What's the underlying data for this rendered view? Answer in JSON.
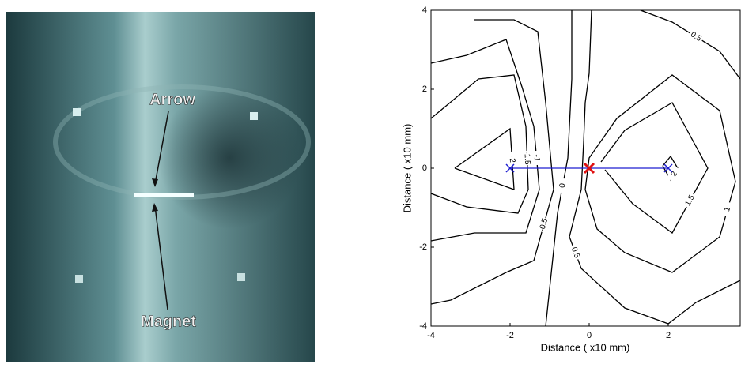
{
  "photo": {
    "labels": {
      "arrow": "Arrow",
      "magnet": "Magnet"
    }
  },
  "chart_data": {
    "type": "contour",
    "xlabel": "Distance ( x10 mm)",
    "ylabel": "Distance ( x10 mm)",
    "xlim": [
      -4,
      4
    ],
    "ylim": [
      -4,
      4
    ],
    "xticks": [
      -4,
      -2,
      0,
      2
    ],
    "yticks": [
      -4,
      -2,
      0,
      2,
      4
    ],
    "line_color": "#000000",
    "contours": [
      {
        "level": -2,
        "x": [
          -3.4,
          -2,
          -1.9,
          -3.4
        ],
        "y": [
          0,
          1,
          -0.54,
          0
        ]
      },
      {
        "level": -1.5,
        "x": [
          -4,
          -2.8,
          -1.9,
          -1.6,
          -1.54,
          -1.8,
          -3.1,
          -4
        ],
        "y": [
          1.26,
          2.26,
          2.36,
          1.06,
          -0.54,
          -1.14,
          -0.98,
          -0.64
        ]
      },
      {
        "level": -1,
        "x": [
          -4,
          -3.1,
          -2.1,
          -1.7,
          -1.4,
          -1.26,
          -1.6,
          -2.9,
          -4
        ],
        "y": [
          2.66,
          2.86,
          3.26,
          2.06,
          1.06,
          -0.54,
          -1.64,
          -1.64,
          -1.84
        ]
      },
      {
        "level": -0.5,
        "x": [
          -2.9,
          -1.9,
          -1.3,
          -1.1,
          -0.9,
          -1.4,
          -2.1,
          -3.5,
          -4
        ],
        "y": [
          3.76,
          3.76,
          3.46,
          1.66,
          -0.54,
          -2.34,
          -2.64,
          -3.34,
          -3.44
        ]
      },
      {
        "level": 0,
        "x": [
          -0.44,
          -0.44,
          -0.54,
          -0.8,
          -1.1
        ],
        "y": [
          4,
          2.26,
          0.26,
          -1.14,
          -4
        ]
      },
      {
        "level": 0.5,
        "x": [
          0.06,
          0,
          -0.1,
          -0.14,
          -0.2,
          -0.5,
          -0.2,
          0.9,
          2,
          2.7,
          3.82
        ],
        "y": [
          4,
          2.4,
          1.66,
          0.66,
          -0.54,
          -1.74,
          -2.54,
          -3.54,
          -3.94,
          -3.4,
          -2.84
        ]
      },
      {
        "level": 0.5,
        "x": [
          1.3,
          2.1,
          3.3,
          3.82
        ],
        "y": [
          4,
          3.7,
          2.96,
          2.26
        ]
      },
      {
        "level": 1,
        "x": [
          -0.1,
          0,
          0.7,
          2.1,
          3.3,
          3.7,
          3.3,
          2.1,
          0.9,
          0.2,
          -0.1
        ],
        "y": [
          -0.54,
          0.26,
          1.26,
          2.36,
          1.46,
          -0.34,
          -1.74,
          -2.64,
          -2.14,
          -1.54,
          -0.54
        ]
      },
      {
        "level": 1.5,
        "x": [
          0.3,
          0.9,
          2.1,
          3,
          2.1,
          1.1,
          0.4
        ],
        "y": [
          0.16,
          0.96,
          1.66,
          0,
          -1.64,
          -0.9,
          -0.04
        ]
      },
      {
        "level": 2,
        "x": [
          1.86,
          2.06,
          2.24,
          2.06,
          1.86
        ],
        "y": [
          0.06,
          0.3,
          0,
          -0.3,
          0.06
        ]
      }
    ],
    "markers": [
      {
        "x": -2,
        "y": 0,
        "color": "#1f1fd0"
      },
      {
        "x": 2,
        "y": 0,
        "color": "#1f1fd0"
      },
      {
        "x": 0,
        "y": 0,
        "color": "#e01010"
      }
    ]
  }
}
